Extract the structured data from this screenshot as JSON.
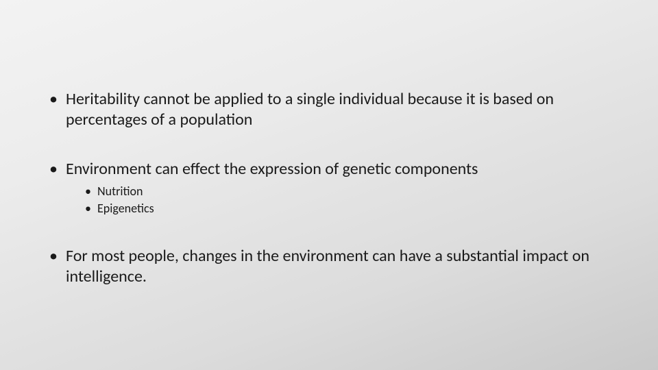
{
  "slide": {
    "background_gradient": [
      "#f3f3f3",
      "#ececec",
      "#dcdcdc",
      "#c9c9c9"
    ],
    "text_color": "#1a1a1a",
    "font_family": "Calibri",
    "bullets": [
      {
        "text": "Heritability cannot be applied to a single individual because it is based on percentages of a population",
        "fontsize": 24,
        "children": []
      },
      {
        "text": "Environment can effect the expression of genetic components",
        "fontsize": 24,
        "children": [
          {
            "text": "Nutrition",
            "fontsize": 18
          },
          {
            "text": "Epigenetics",
            "fontsize": 18
          }
        ]
      },
      {
        "text": "For most people, changes in the environment can have a substantial impact on intelligence.",
        "fontsize": 24,
        "children": []
      }
    ]
  }
}
